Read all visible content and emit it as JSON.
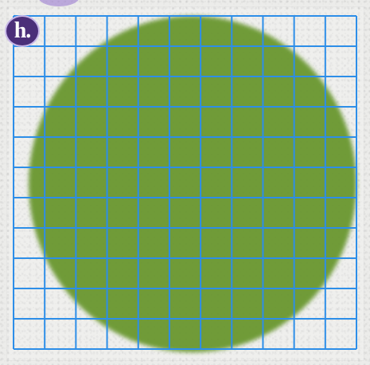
{
  "label": {
    "text": "h.",
    "background_color": "#4b2f79",
    "border_color": "#c7b7e8",
    "text_color": "#ffffff"
  },
  "image": {
    "background_color": "#ececea",
    "shape_fill_color": "#6f9b38",
    "grid_color": "#2d8ee8"
  }
}
